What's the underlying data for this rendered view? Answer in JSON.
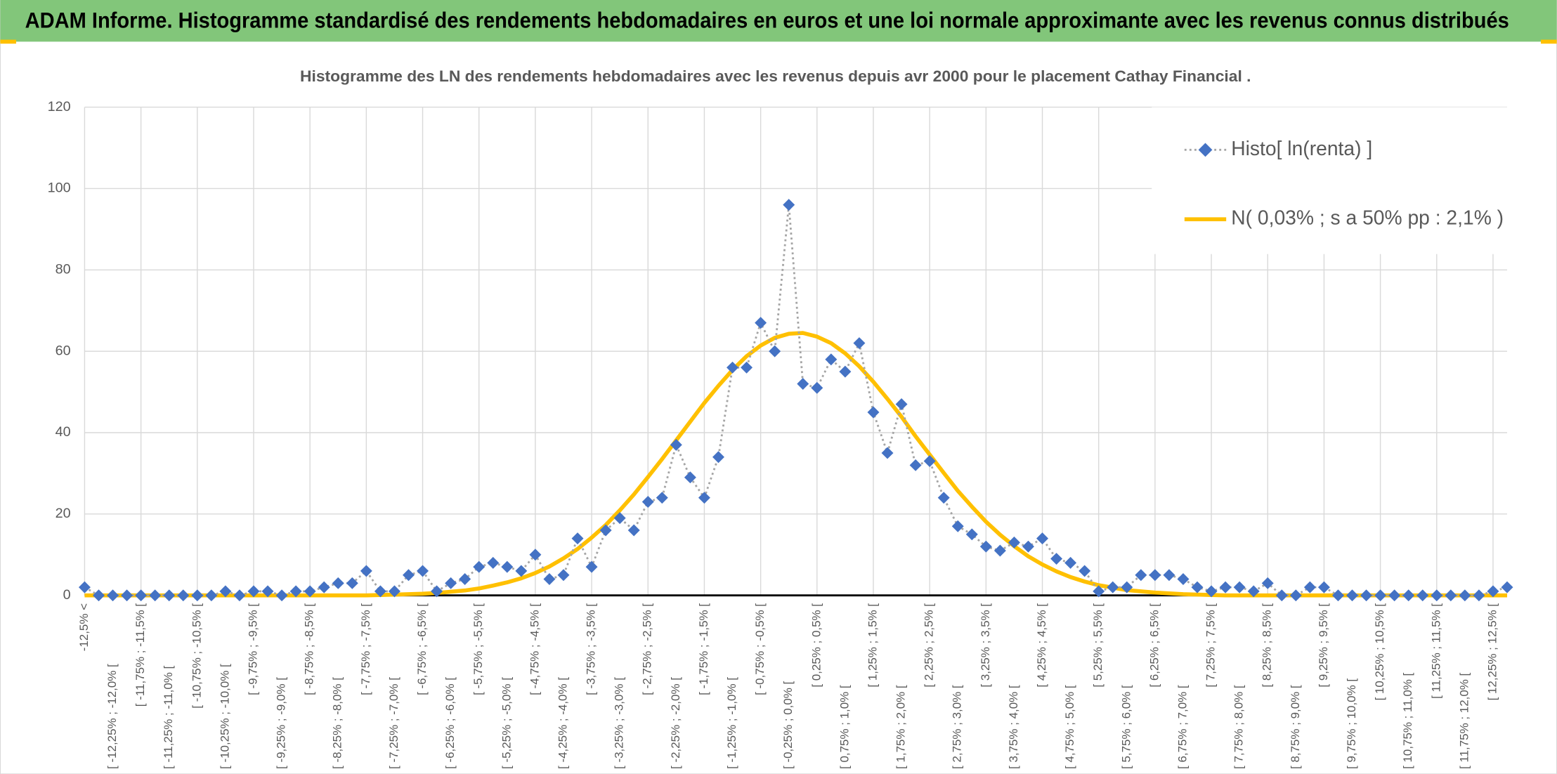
{
  "header": {
    "title": "ADAM Informe. Histogramme standardisé des rendements hebdomadaires en euros et une loi normale approximante avec les revenus connus distribués"
  },
  "chart_data": {
    "type": "line",
    "title": "Histogramme des LN des rendements hebdomadaires avec les revenus depuis avr 2000 pour le placement Cathay Financial .",
    "categories": [
      "-12,5% <",
      null,
      "[ -12,25% ; -12,0% [",
      null,
      "[ -11,75% ; -11,5% [",
      null,
      "[ -11,25% ; -11,0% [",
      null,
      "[ -10,75% ; -10,5% [",
      null,
      "[ -10,25% ; -10,0% [",
      null,
      "[ -9,75% ; -9,5% [",
      null,
      "[ -9,25% ; -9,0% [",
      null,
      "[ -8,75% ; -8,5% [",
      null,
      "[ -8,25% ; -8,0% [",
      null,
      "[ -7,75% ; -7,5% [",
      null,
      "[ -7,25% ; -7,0% [",
      null,
      "[ -6,75% ; -6,5% [",
      null,
      "[ -6,25% ; -6,0% [",
      null,
      "[ -5,75% ; -5,5% [",
      null,
      "[ -5,25% ; -5,0% [",
      null,
      "[ -4,75% ; -4,5% [",
      null,
      "[ -4,25% ; -4,0% [",
      null,
      "[ -3,75% ; -3,5% [",
      null,
      "[ -3,25% ; -3,0% [",
      null,
      "[ -2,75% ; -2,5% [",
      null,
      "[ -2,25% ; -2,0% [",
      null,
      "[ -1,75% ; -1,5% [",
      null,
      "[ -1,25% ; -1,0% [",
      null,
      "[ -0,75% ; -0,5% [",
      null,
      "[ -0,25% ; 0,0% [",
      null,
      "[ 0,25% ; 0,5% [",
      null,
      "[ 0,75% ; 1,0% [",
      null,
      "[ 1,25% ; 1,5% [",
      null,
      "[ 1,75% ; 2,0% [",
      null,
      "[ 2,25% ; 2,5% [",
      null,
      "[ 2,75% ; 3,0% [",
      null,
      "[ 3,25% ; 3,5% [",
      null,
      "[ 3,75% ; 4,0% [",
      null,
      "[ 4,25% ; 4,5% [",
      null,
      "[ 4,75% ; 5,0% [",
      null,
      "[ 5,25% ; 5,5% [",
      null,
      "[ 5,75% ; 6,0% [",
      null,
      "[ 6,25% ; 6,5% [",
      null,
      "[ 6,75% ; 7,0% [",
      null,
      "[ 7,25% ; 7,5% [",
      null,
      "[ 7,75% ; 8,0% [",
      null,
      "[ 8,25% ; 8,5% [",
      null,
      "[ 8,75% ; 9,0% [",
      null,
      "[ 9,25% ; 9,5% [",
      null,
      "[ 9,75% ; 10,0% [",
      null,
      "[ 10,25% ; 10,5% [",
      null,
      "[ 10,75% ; 11,0% [",
      null,
      "[ 11,25% ; 11,5% [",
      null,
      "[ 11,75% ; 12,0% [",
      null,
      "[ 12,25% ; 12,5% [",
      null
    ],
    "series": [
      {
        "name": "Histo[ ln(renta) ]",
        "color": "#4472c4",
        "marker": "diamond",
        "line_color": "#a5a5a5",
        "line_style": "dotted",
        "values": [
          2,
          0,
          0,
          0,
          0,
          0,
          0,
          0,
          0,
          0,
          1,
          0,
          1,
          1,
          0,
          1,
          1,
          2,
          3,
          3,
          6,
          1,
          1,
          5,
          6,
          1,
          3,
          4,
          7,
          8,
          7,
          6,
          10,
          4,
          5,
          14,
          7,
          16,
          19,
          16,
          23,
          24,
          37,
          29,
          24,
          34,
          56,
          56,
          67,
          60,
          96,
          52,
          51,
          58,
          55,
          62,
          45,
          35,
          47,
          32,
          33,
          24,
          17,
          15,
          12,
          11,
          13,
          12,
          14,
          9,
          8,
          6,
          1,
          2,
          2,
          5,
          5,
          5,
          4,
          2,
          1,
          2,
          2,
          1,
          3,
          0,
          0,
          2,
          2,
          0,
          0,
          0,
          0,
          0,
          0,
          0,
          0,
          0,
          0,
          0,
          1,
          2
        ]
      },
      {
        "name": "N( 0,03% ; s a 50% pp : 2,1% )",
        "color": "#ffc000",
        "line_style": "solid",
        "values": [
          0,
          0,
          0,
          0,
          0,
          0,
          0,
          0,
          0,
          0,
          0,
          0,
          0,
          0,
          0,
          0,
          0,
          0,
          0,
          0,
          0,
          0.1,
          0.2,
          0.3,
          0.4,
          0.6,
          0.9,
          1.2,
          1.7,
          2.4,
          3.2,
          4.2,
          5.5,
          7.1,
          9.1,
          11.4,
          14.2,
          17.3,
          20.9,
          24.8,
          29.1,
          33.5,
          38.1,
          42.7,
          47.3,
          51.5,
          55.4,
          58.8,
          61.4,
          63.3,
          64.3,
          64.5,
          63.6,
          62,
          59.5,
          56.3,
          52.5,
          48.3,
          43.9,
          39.1,
          34.6,
          30.1,
          25.7,
          21.8,
          18.1,
          14.9,
          12.1,
          9.6,
          7.6,
          5.9,
          4.5,
          3.4,
          2.5,
          1.9,
          1.3,
          1,
          0.7,
          0.5,
          0.3,
          0.2,
          0.1,
          0,
          0,
          0,
          0,
          0,
          0,
          0,
          0,
          0,
          0,
          0,
          0,
          0,
          0,
          0,
          0,
          0,
          0,
          0,
          0,
          0
        ]
      }
    ],
    "ylim": [
      0,
      120
    ],
    "yticks": [
      0,
      20,
      40,
      60,
      80,
      100,
      120
    ],
    "grid": true,
    "legend": "top-right"
  }
}
